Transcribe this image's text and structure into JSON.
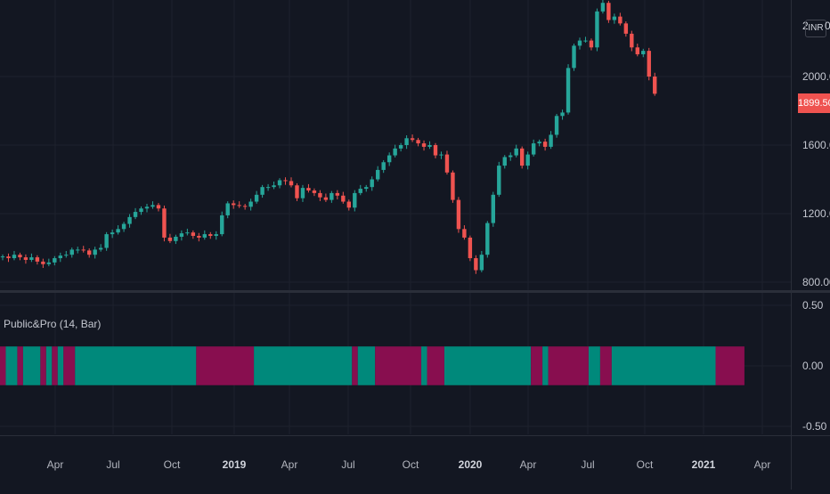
{
  "header": {
    "currency": "INR",
    "left_num": "2",
    "right_num": "0"
  },
  "price_tag": "1899.50",
  "indicator": {
    "title": "Public&Pro (14, Bar)"
  },
  "colors": {
    "up": "#26a69a",
    "down": "#ef5350",
    "bull_fill": "#00897b",
    "bear_fill": "#880e4f",
    "grid": "#1e222d",
    "bg": "#131722"
  },
  "chart_data": [
    {
      "type": "candlestick",
      "title": "",
      "y_axis": {
        "ticks": [
          800,
          1200,
          1600,
          2000
        ],
        "tick_labels": [
          "800.00",
          "1200.00",
          "1600.00",
          "2000.00"
        ],
        "range": [
          700,
          2450
        ]
      },
      "x_axis": {
        "tick_labels": [
          "Apr",
          "Jul",
          "Oct",
          "2019",
          "Apr",
          "Jul",
          "Oct",
          "2020",
          "Apr",
          "Jul",
          "Oct",
          "2021",
          "Apr"
        ]
      },
      "last_price": 1899.5,
      "close_series": [
        950,
        940,
        960,
        945,
        930,
        945,
        920,
        905,
        915,
        940,
        955,
        960,
        990,
        990,
        985,
        960,
        990,
        1000,
        1080,
        1090,
        1110,
        1140,
        1180,
        1210,
        1230,
        1240,
        1250,
        1230,
        1060,
        1040,
        1065,
        1085,
        1090,
        1070,
        1060,
        1080,
        1070,
        1080,
        1190,
        1260,
        1250,
        1245,
        1240,
        1270,
        1310,
        1355,
        1355,
        1365,
        1395,
        1390,
        1365,
        1290,
        1350,
        1335,
        1320,
        1295,
        1280,
        1320,
        1305,
        1270,
        1235,
        1320,
        1345,
        1355,
        1400,
        1455,
        1500,
        1540,
        1580,
        1600,
        1640,
        1630,
        1610,
        1590,
        1600,
        1540,
        1545,
        1440,
        1280,
        1110,
        1060,
        940,
        870,
        960,
        1145,
        1310,
        1480,
        1530,
        1540,
        1580,
        1480,
        1545,
        1610,
        1620,
        1590,
        1660,
        1770,
        1790,
        2050,
        2180,
        2210,
        2210,
        2170,
        2380,
        2430,
        2330,
        2350,
        2310,
        2250,
        2170,
        2130,
        2150,
        2000,
        1899.5
      ]
    },
    {
      "type": "bar-regime",
      "title": "Public&Pro (14, Bar)",
      "y_axis": {
        "ticks": [
          0.5,
          0,
          -0.5
        ],
        "tick_labels": [
          "0.50",
          "0.00",
          "-0.50"
        ]
      },
      "segments": [
        {
          "state": "bear",
          "weeks": 1
        },
        {
          "state": "bull",
          "weeks": 2
        },
        {
          "state": "bear",
          "weeks": 1
        },
        {
          "state": "bull",
          "weeks": 3
        },
        {
          "state": "bear",
          "weeks": 1
        },
        {
          "state": "bull",
          "weeks": 1
        },
        {
          "state": "bear",
          "weeks": 1
        },
        {
          "state": "bull",
          "weeks": 1
        },
        {
          "state": "bear",
          "weeks": 2
        },
        {
          "state": "bull",
          "weeks": 21
        },
        {
          "state": "bear",
          "weeks": 10
        },
        {
          "state": "bull",
          "weeks": 17
        },
        {
          "state": "bear",
          "weeks": 1
        },
        {
          "state": "bull",
          "weeks": 3
        },
        {
          "state": "bear",
          "weeks": 8
        },
        {
          "state": "bull",
          "weeks": 1
        },
        {
          "state": "bear",
          "weeks": 3
        },
        {
          "state": "bull",
          "weeks": 15
        },
        {
          "state": "bear",
          "weeks": 2
        },
        {
          "state": "bull",
          "weeks": 1
        },
        {
          "state": "bear",
          "weeks": 7
        },
        {
          "state": "bull",
          "weeks": 2
        },
        {
          "state": "bear",
          "weeks": 2
        },
        {
          "state": "bull",
          "weeks": 18
        },
        {
          "state": "bear",
          "weeks": 5
        }
      ]
    }
  ]
}
